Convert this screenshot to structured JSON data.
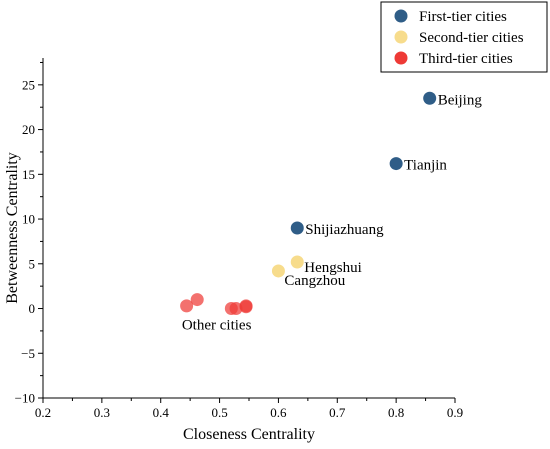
{
  "chart_data": {
    "type": "scatter",
    "xlabel": "Closeness Centrality",
    "ylabel": "Betweenness Centrality",
    "xlim": [
      0.2,
      0.9
    ],
    "ylim": [
      -10,
      28
    ],
    "xticks": [
      "0.2",
      "0.3",
      "0.4",
      "0.5",
      "0.6",
      "0.7",
      "0.8",
      "0.9"
    ],
    "yticks": [
      "−10",
      "−5",
      "0",
      "5",
      "10",
      "15",
      "20",
      "25"
    ],
    "grid": false,
    "legend_position": "top-right",
    "series": [
      {
        "name": "First-tier cities",
        "color": "#2f5d87",
        "points": [
          {
            "x": 0.857,
            "y": 23.5
          },
          {
            "x": 0.8,
            "y": 16.2
          },
          {
            "x": 0.632,
            "y": 9.0
          }
        ]
      },
      {
        "name": "Second-tier cities",
        "color": "#f7dc8c",
        "points": [
          {
            "x": 0.632,
            "y": 5.2
          },
          {
            "x": 0.6,
            "y": 4.2
          }
        ]
      },
      {
        "name": "Third-tier cities",
        "color": "#ee3a36",
        "points": [
          {
            "x": 0.444,
            "y": 0.3
          },
          {
            "x": 0.462,
            "y": 1.0
          },
          {
            "x": 0.52,
            "y": 0.0
          },
          {
            "x": 0.528,
            "y": 0.0
          },
          {
            "x": 0.545,
            "y": 0.3
          },
          {
            "x": 0.545,
            "y": 0.2
          }
        ]
      }
    ],
    "annotations": [
      {
        "text": "Beijing",
        "x": 0.857,
        "y": 23.5
      },
      {
        "text": "Tianjin",
        "x": 0.8,
        "y": 16.2
      },
      {
        "text": "Shijiazhuang",
        "x": 0.632,
        "y": 9.0
      },
      {
        "text": "Hengshui",
        "x": 0.632,
        "y": 5.2
      },
      {
        "text": "Cangzhou",
        "x": 0.6,
        "y": 4.2
      },
      {
        "text": "Other cities",
        "x": 0.495,
        "y": -1.8
      }
    ]
  }
}
